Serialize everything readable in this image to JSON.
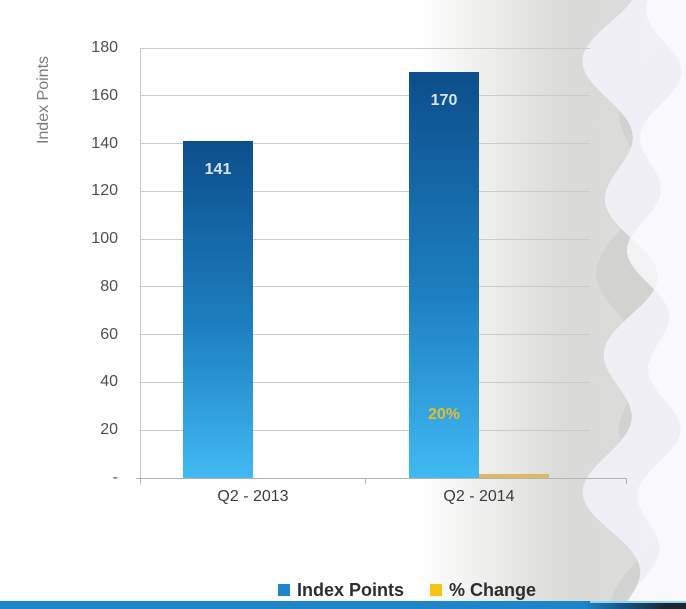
{
  "chart_data": {
    "type": "bar",
    "categories": [
      "Q2 - 2013",
      "Q2 - 2014"
    ],
    "series": [
      {
        "name": "Index Points",
        "values": [
          141,
          170
        ],
        "data_labels": [
          "141",
          "170"
        ],
        "color_top": "#0d4e8c",
        "color_bottom": "#41b9f2"
      },
      {
        "name": "% Change",
        "values": [
          0,
          20
        ],
        "unit": "%",
        "data_labels": [
          "",
          "20%"
        ],
        "color": "#ddb965"
      }
    ],
    "title": "",
    "xlabel": "",
    "ylabel": "Index Points",
    "ylim": [
      0,
      180
    ],
    "ytick_step": 20,
    "yticks": [
      {
        "value": 180,
        "label": "180"
      },
      {
        "value": 160,
        "label": "160"
      },
      {
        "value": 140,
        "label": "140"
      },
      {
        "value": 120,
        "label": "120"
      },
      {
        "value": 100,
        "label": "100"
      },
      {
        "value": 80,
        "label": "80"
      },
      {
        "value": 60,
        "label": "60"
      },
      {
        "value": 40,
        "label": "40"
      },
      {
        "value": 20,
        "label": "20"
      },
      {
        "value": 0,
        "label": "-"
      }
    ],
    "grid": true,
    "legend_position": "bottom-right",
    "legend": [
      {
        "label": "Index Points",
        "swatch_color": "#1e86c8"
      },
      {
        "label": "% Change",
        "swatch_color": "#f7c315"
      }
    ]
  },
  "colors": {
    "grid_line": "#cbcbc7",
    "axis_line": "#b3b3af",
    "tick_label": "#4f4f4f",
    "category_label": "#3d3d3d",
    "y_axis_title": "#7b7b7b",
    "bar_value_label": "#d6e4f1",
    "pct_change_label": "#e9bc26",
    "legend_text": "#2e2e2e",
    "bottom_bar_blue": "#1e86c8",
    "bottom_bar_dark": "#1c2733",
    "bottom_bar_cyan": "#8fd6f3"
  }
}
